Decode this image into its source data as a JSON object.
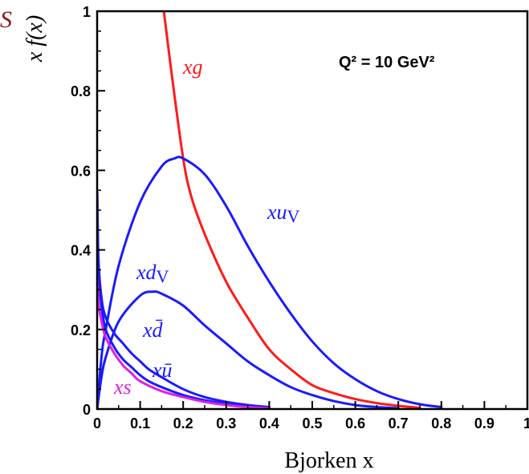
{
  "chart_data": {
    "type": "line",
    "title": "",
    "xlabel": "Bjorken x",
    "ylabel": "x f(x)",
    "xlim": [
      0,
      1
    ],
    "ylim": [
      0,
      1
    ],
    "x_ticks": [
      "0",
      "0.1",
      "0.2",
      "0.3",
      "0.4",
      "0.5",
      "0.6",
      "0.7",
      "0.8",
      "0.9",
      "1"
    ],
    "y_ticks": [
      "0",
      "0.2",
      "0.4",
      "0.6",
      "0.8",
      "1"
    ],
    "annotation": "Q² = 10 GeV²",
    "top_left_label": "S",
    "series": [
      {
        "name": "xg",
        "color": "#ff1a1a",
        "x": [
          0.155,
          0.17,
          0.2,
          0.22,
          0.25,
          0.3,
          0.35,
          0.4,
          0.45,
          0.5,
          0.55,
          0.6,
          0.65,
          0.7,
          0.75
        ],
        "y": [
          1.0,
          0.87,
          0.63,
          0.53,
          0.44,
          0.32,
          0.23,
          0.15,
          0.1,
          0.06,
          0.04,
          0.025,
          0.015,
          0.008,
          0.003
        ]
      },
      {
        "name": "xu_V",
        "color": "#1a1aff",
        "x": [
          0.0,
          0.01,
          0.02,
          0.05,
          0.1,
          0.15,
          0.18,
          0.2,
          0.25,
          0.3,
          0.35,
          0.4,
          0.45,
          0.5,
          0.55,
          0.6,
          0.65,
          0.7,
          0.75,
          0.8
        ],
        "y": [
          0.0,
          0.13,
          0.2,
          0.36,
          0.52,
          0.61,
          0.63,
          0.63,
          0.59,
          0.51,
          0.41,
          0.32,
          0.24,
          0.17,
          0.115,
          0.075,
          0.045,
          0.025,
          0.012,
          0.005
        ]
      },
      {
        "name": "xd_V",
        "color": "#1a1aff",
        "x": [
          0.0,
          0.01,
          0.02,
          0.05,
          0.1,
          0.13,
          0.15,
          0.2,
          0.25,
          0.3,
          0.35,
          0.4,
          0.45,
          0.5,
          0.55,
          0.6,
          0.65,
          0.7
        ],
        "y": [
          0.0,
          0.08,
          0.13,
          0.22,
          0.285,
          0.295,
          0.29,
          0.26,
          0.21,
          0.165,
          0.12,
          0.085,
          0.055,
          0.035,
          0.02,
          0.01,
          0.005,
          0.002
        ]
      },
      {
        "name": "xd̄",
        "color": "#1a1aff",
        "x": [
          0.0,
          0.003,
          0.01,
          0.02,
          0.04,
          0.06,
          0.08,
          0.1,
          0.12,
          0.15,
          0.2,
          0.25,
          0.3,
          0.35,
          0.4
        ],
        "y": [
          0.55,
          0.38,
          0.28,
          0.23,
          0.19,
          0.165,
          0.14,
          0.12,
          0.1,
          0.08,
          0.05,
          0.03,
          0.018,
          0.01,
          0.005
        ]
      },
      {
        "name": "xū",
        "color": "#1a1aff",
        "x": [
          0.0,
          0.003,
          0.01,
          0.02,
          0.04,
          0.06,
          0.08,
          0.1,
          0.12,
          0.15,
          0.2,
          0.25,
          0.3,
          0.35,
          0.4
        ],
        "y": [
          0.55,
          0.36,
          0.26,
          0.2,
          0.155,
          0.125,
          0.105,
          0.085,
          0.07,
          0.055,
          0.035,
          0.022,
          0.013,
          0.007,
          0.003
        ]
      },
      {
        "name": "xs",
        "color": "#e020e0",
        "x": [
          0.0,
          0.003,
          0.01,
          0.02,
          0.04,
          0.06,
          0.08,
          0.1,
          0.15,
          0.2,
          0.25,
          0.3,
          0.35,
          0.4
        ],
        "y": [
          0.33,
          0.27,
          0.22,
          0.18,
          0.14,
          0.11,
          0.09,
          0.07,
          0.045,
          0.03,
          0.018,
          0.01,
          0.005,
          0.002
        ]
      }
    ]
  }
}
